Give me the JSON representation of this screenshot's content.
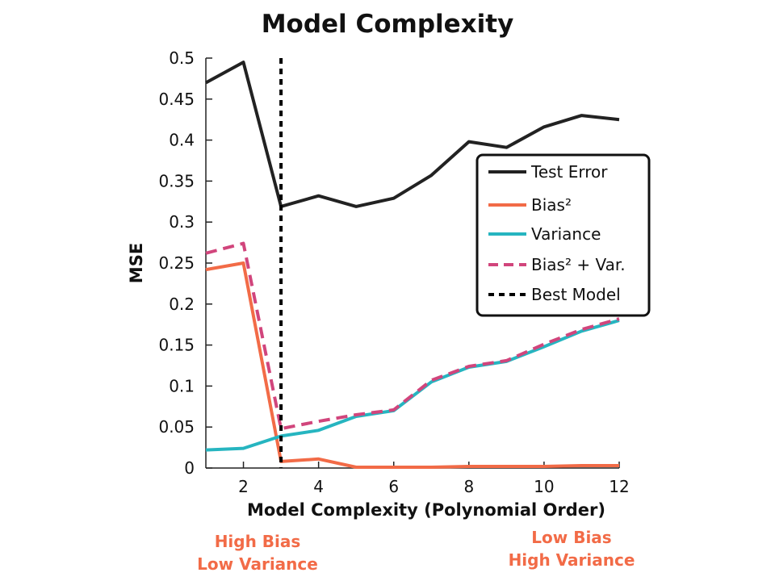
{
  "chart_data": {
    "type": "line",
    "title": "Model Complexity",
    "xlabel": "Model Complexity (Polynomial Order)",
    "ylabel": "MSE",
    "xlim": [
      1,
      12
    ],
    "ylim": [
      0,
      0.5
    ],
    "x_ticks": [
      "2",
      "4",
      "6",
      "8",
      "10",
      "12"
    ],
    "y_ticks": [
      "0",
      "0.05",
      "0.1",
      "0.15",
      "0.2",
      "0.25",
      "0.3",
      "0.35",
      "0.4",
      "0.45",
      "0.5"
    ],
    "x": [
      1,
      2,
      3,
      4,
      5,
      6,
      7,
      8,
      9,
      10,
      11,
      12
    ],
    "series": [
      {
        "name": "Test Error",
        "color": "#222222",
        "style": "solid",
        "values": [
          0.47,
          0.495,
          0.319,
          0.332,
          0.319,
          0.329,
          0.357,
          0.398,
          0.391,
          0.416,
          0.43,
          0.425
        ]
      },
      {
        "name": "Bias²",
        "color": "#f26b47",
        "style": "solid",
        "values": [
          0.242,
          0.25,
          0.008,
          0.011,
          0.001,
          0.001,
          0.001,
          0.002,
          0.002,
          0.002,
          0.003,
          0.003
        ]
      },
      {
        "name": "Variance",
        "color": "#26b5c0",
        "style": "solid",
        "values": [
          0.022,
          0.024,
          0.039,
          0.046,
          0.063,
          0.07,
          0.105,
          0.123,
          0.13,
          0.148,
          0.167,
          0.18
        ]
      },
      {
        "name": "Bias² + Var.",
        "color": "#d1457c",
        "style": "dashed",
        "values": [
          0.262,
          0.274,
          0.048,
          0.057,
          0.065,
          0.071,
          0.107,
          0.124,
          0.131,
          0.151,
          0.169,
          0.182
        ]
      }
    ],
    "vline": {
      "name": "Best Model",
      "x": 3,
      "color": "#000000",
      "style": "dotted"
    },
    "legend_position": "right",
    "annotations": {
      "left": [
        "High Bias",
        "Low Variance"
      ],
      "right": [
        "Low Bias",
        "High Variance"
      ],
      "color": "#f26b47"
    },
    "grid": false
  }
}
